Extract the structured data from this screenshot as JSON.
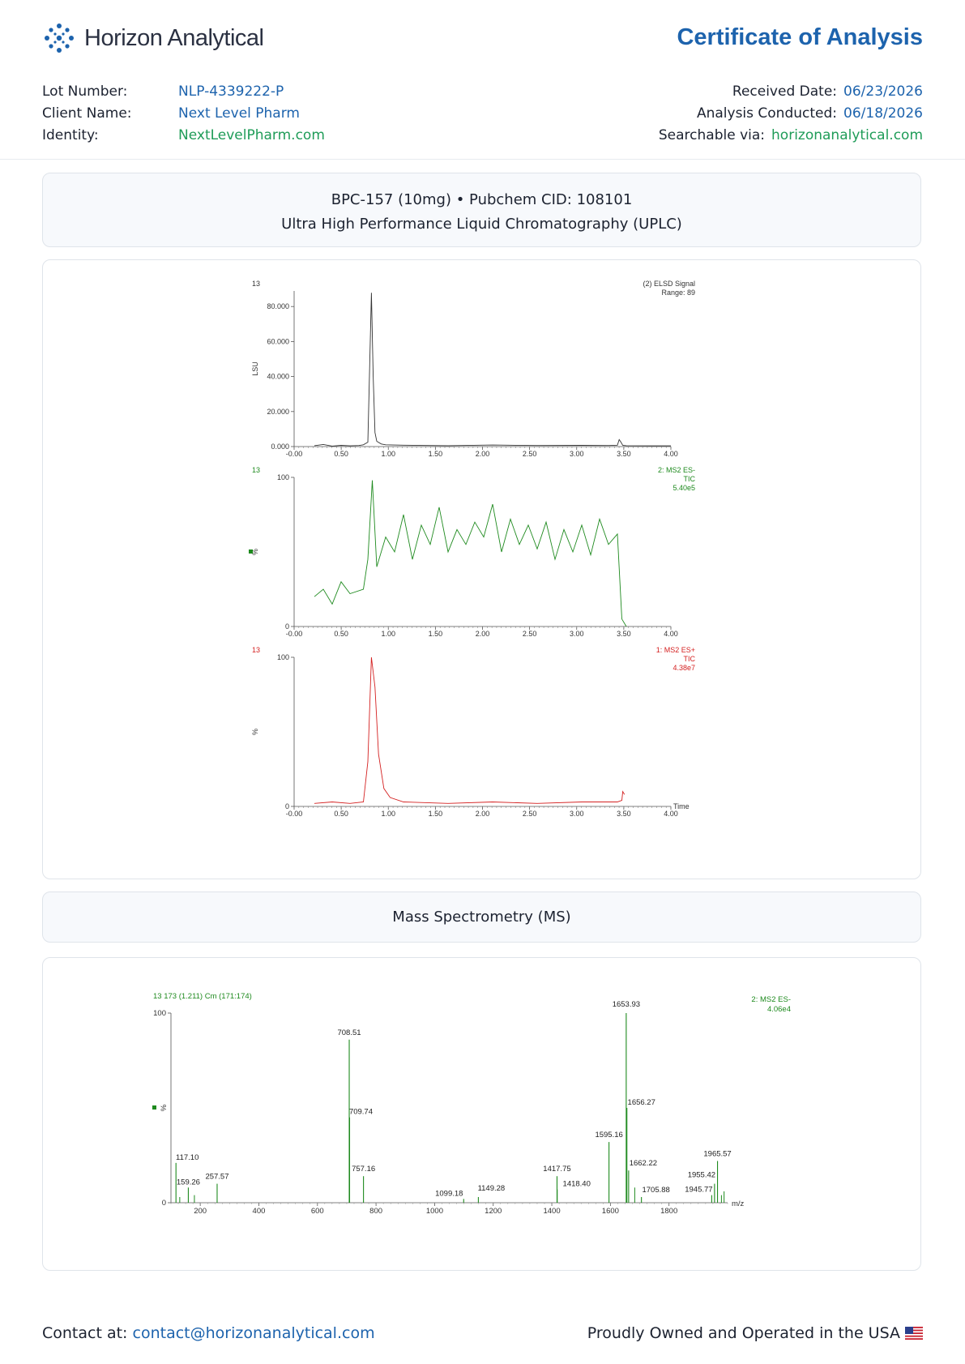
{
  "header": {
    "brand": "Horizon Analytical",
    "doc_title": "Certificate of Analysis",
    "lot_label": "Lot Number:",
    "lot_value": "NLP-4339222-P",
    "client_label": "Client Name:",
    "client_value": "Next Level Pharm",
    "identity_label": "Identity:",
    "identity_value": "NextLevelPharm.com",
    "received_label": "Received Date:",
    "received_value": "06/23/2026",
    "conducted_label": "Analysis Conducted:",
    "conducted_value": "06/18/2026",
    "searchable_label": "Searchable via:",
    "searchable_value": "horizonanalytical.com"
  },
  "uplc_section": {
    "line1": "BPC-157 (10mg) • Pubchem CID: 108101",
    "line2": "Ultra High Performance Liquid Chromatography (UPLC)"
  },
  "ms_section": {
    "title": "Mass Spectrometry (MS)"
  },
  "footer": {
    "contact_label": "Contact at:",
    "contact_email": "contact@horizonanalytical.com",
    "usa_text": "Proudly Owned and Operated in the USA"
  },
  "colors": {
    "brand_blue": "#1d63ad",
    "brand_green": "#1f9c58",
    "elsd": "#333333",
    "ms_neg": "#1e8a1e",
    "ms_pos": "#d42020"
  },
  "chart_data": [
    {
      "type": "line",
      "sample_label": "13",
      "legend": [
        "(2) ELSD Signal",
        "Range: 89"
      ],
      "ylabel": "LSU",
      "xlim": [
        0,
        4.0
      ],
      "ylim": [
        0,
        89000
      ],
      "xticks": [
        "-0.00",
        "0.50",
        "1.00",
        "1.50",
        "2.00",
        "2.50",
        "3.00",
        "3.50",
        "4.00"
      ],
      "yticks": [
        "0.000",
        "20.000",
        "40.000",
        "60.000",
        "80.000"
      ],
      "series": [
        {
          "x": [
            0.0,
            0.1,
            0.2,
            0.3,
            0.4,
            0.5,
            0.55,
            0.6,
            0.62,
            0.64,
            0.66,
            0.68,
            0.7,
            0.75,
            0.8,
            1.0,
            1.5,
            2.0,
            2.5,
            3.0,
            3.3,
            3.4,
            3.42,
            3.44,
            3.46,
            3.5,
            3.8,
            4.0
          ],
          "y": [
            500,
            1200,
            300,
            700,
            400,
            600,
            1000,
            2500,
            45000,
            88000,
            40000,
            8000,
            3000,
            1500,
            1000,
            800,
            500,
            900,
            600,
            700,
            600,
            800,
            4000,
            2500,
            700,
            500,
            400,
            400
          ]
        }
      ]
    },
    {
      "type": "line",
      "sample_label": "13",
      "legend": [
        "2: MS2 ES-",
        "TIC",
        "5.40e5"
      ],
      "ylabel": "%",
      "xlim": [
        0,
        4.0
      ],
      "ylim": [
        0,
        100
      ],
      "xticks": [
        "-0.00",
        "0.50",
        "1.00",
        "1.50",
        "2.00",
        "2.50",
        "3.00",
        "3.50",
        "4.00"
      ],
      "yticks": [
        "0",
        "100"
      ],
      "series": [
        {
          "x": [
            0.0,
            0.1,
            0.2,
            0.3,
            0.4,
            0.55,
            0.6,
            0.65,
            0.7,
            0.8,
            0.9,
            1.0,
            1.1,
            1.2,
            1.3,
            1.4,
            1.5,
            1.6,
            1.7,
            1.8,
            1.9,
            2.0,
            2.1,
            2.2,
            2.3,
            2.4,
            2.5,
            2.6,
            2.7,
            2.8,
            2.9,
            3.0,
            3.1,
            3.2,
            3.3,
            3.4,
            3.45,
            3.5
          ],
          "y": [
            20,
            25,
            15,
            30,
            22,
            25,
            45,
            98,
            40,
            60,
            50,
            75,
            45,
            68,
            55,
            80,
            50,
            65,
            55,
            70,
            60,
            82,
            50,
            72,
            55,
            68,
            52,
            70,
            45,
            65,
            50,
            68,
            48,
            72,
            55,
            62,
            5,
            0
          ]
        }
      ]
    },
    {
      "type": "line",
      "sample_label": "13",
      "legend": [
        "1: MS2 ES+",
        "TIC",
        "4.38e7"
      ],
      "ylabel": "%",
      "xlabel": "Time",
      "xlim": [
        0,
        4.0
      ],
      "ylim": [
        0,
        100
      ],
      "xticks": [
        "-0.00",
        "0.50",
        "1.00",
        "1.50",
        "2.00",
        "2.50",
        "3.00",
        "3.50",
        "4.00"
      ],
      "yticks": [
        "0",
        "100"
      ],
      "series": [
        {
          "x": [
            0.0,
            0.2,
            0.4,
            0.55,
            0.6,
            0.64,
            0.68,
            0.72,
            0.78,
            0.85,
            1.0,
            1.5,
            2.0,
            2.5,
            3.0,
            3.4,
            3.45,
            3.46,
            3.48
          ],
          "y": [
            2,
            3,
            2,
            3,
            30,
            100,
            80,
            35,
            12,
            6,
            3,
            2,
            3,
            2,
            3,
            3,
            4,
            10,
            8
          ]
        }
      ]
    },
    {
      "type": "bar",
      "header": "13 173 (1.211) Cm (171:174)",
      "legend": [
        "2: MS2 ES-",
        "4.06e4"
      ],
      "ylabel": "%",
      "xlabel": "m/z",
      "xlim": [
        100,
        2000
      ],
      "ylim": [
        0,
        100
      ],
      "xticks": [
        "200",
        "400",
        "600",
        "800",
        "1000",
        "1200",
        "1400",
        "1600",
        "1800"
      ],
      "yticks": [
        "0",
        "100"
      ],
      "peaks": [
        {
          "mz": 117.1,
          "label": "117.10",
          "intensity": 21
        },
        {
          "mz": 159.26,
          "label": "159.26",
          "intensity": 8
        },
        {
          "mz": 257.57,
          "label": "257.57",
          "intensity": 10
        },
        {
          "mz": 708.51,
          "label": "708.51",
          "intensity": 86
        },
        {
          "mz": 709.74,
          "label": "709.74",
          "intensity": 45
        },
        {
          "mz": 757.16,
          "label": "757.16",
          "intensity": 14
        },
        {
          "mz": 1099.18,
          "label": "1099.18",
          "intensity": 2
        },
        {
          "mz": 1149.28,
          "label": "1149.28",
          "intensity": 3
        },
        {
          "mz": 1417.75,
          "label": "1417.75",
          "intensity": 14
        },
        {
          "mz": 1418.4,
          "label": "1418.40",
          "intensity": 7
        },
        {
          "mz": 1595.16,
          "label": "1595.16",
          "intensity": 32
        },
        {
          "mz": 1653.93,
          "label": "1653.93",
          "intensity": 100
        },
        {
          "mz": 1656.27,
          "label": "1656.27",
          "intensity": 50
        },
        {
          "mz": 1662.22,
          "label": "1662.22",
          "intensity": 17
        },
        {
          "mz": 1705.88,
          "label": "1705.88",
          "intensity": 3
        },
        {
          "mz": 1945.77,
          "label": "1945.77",
          "intensity": 4
        },
        {
          "mz": 1955.42,
          "label": "1955.42",
          "intensity": 10
        },
        {
          "mz": 1965.57,
          "label": "1965.57",
          "intensity": 22
        }
      ]
    }
  ]
}
